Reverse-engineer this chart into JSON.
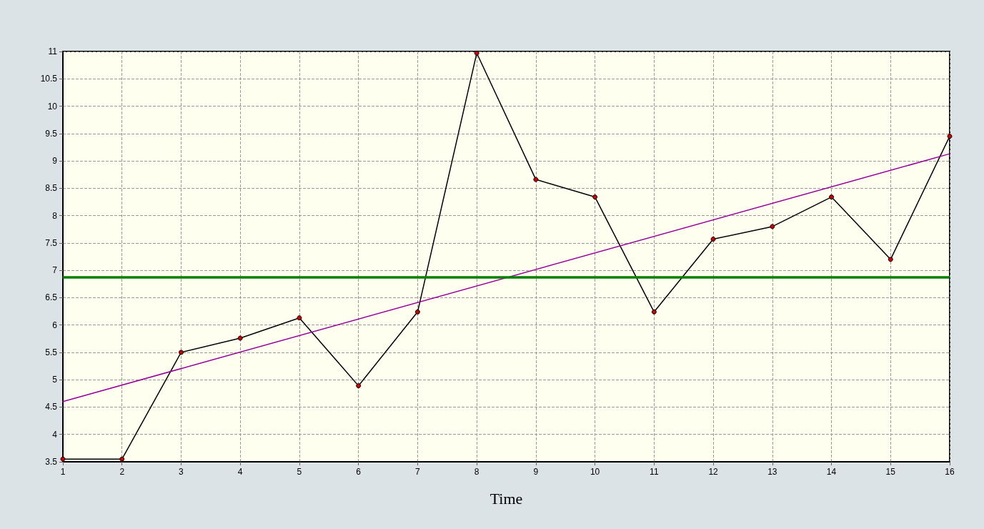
{
  "chart_data": {
    "type": "line",
    "xlabel": "Time",
    "x": [
      1,
      2,
      3,
      4,
      5,
      6,
      7,
      8,
      9,
      10,
      11,
      12,
      13,
      14,
      15,
      16
    ],
    "series": [
      {
        "color": "#000000",
        "marker": "circle",
        "values": [
          3.55,
          3.55,
          5.5,
          5.76,
          6.13,
          4.89,
          6.24,
          10.97,
          8.66,
          8.34,
          6.24,
          7.57,
          7.8,
          8.34,
          7.2,
          9.45
        ]
      },
      {
        "type": "line",
        "color": "#990099",
        "marker": "none",
        "x": [
          1,
          16
        ],
        "values": [
          4.6,
          9.13
        ]
      }
    ],
    "ref_lines": [
      {
        "axis": "y",
        "value": 6.87,
        "color": "#008000"
      }
    ],
    "xlim": [
      1,
      16
    ],
    "xticks": [
      1,
      2,
      3,
      4,
      5,
      6,
      7,
      8,
      9,
      10,
      11,
      12,
      13,
      14,
      15,
      16
    ],
    "ylim": [
      3.5,
      11
    ],
    "yticks": [
      3.5,
      4,
      4.5,
      5,
      5.5,
      6,
      6.5,
      7,
      7.5,
      8,
      8.5,
      9,
      9.5,
      10,
      10.5,
      11
    ],
    "grid": true
  }
}
